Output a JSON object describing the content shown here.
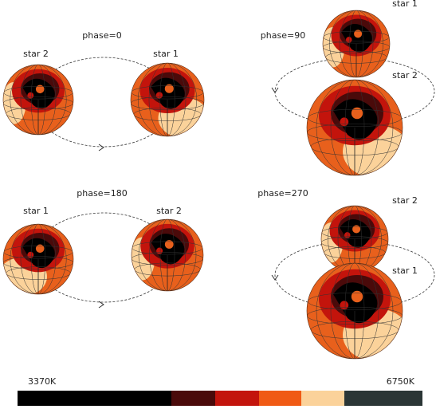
{
  "panels": [
    {
      "phase": "phase=0",
      "stars": [
        {
          "label": "star 2"
        },
        {
          "label": "star 1"
        }
      ]
    },
    {
      "phase": "phase=90",
      "stars": [
        {
          "label": "star 1"
        },
        {
          "label": "star 2"
        }
      ]
    },
    {
      "phase": "phase=180",
      "stars": [
        {
          "label": "star 1"
        },
        {
          "label": "star 2"
        }
      ]
    },
    {
      "phase": "phase=270",
      "stars": [
        {
          "label": "star 2"
        },
        {
          "label": "star 1"
        }
      ]
    }
  ],
  "colorbar": {
    "min_label": "3370K",
    "max_label": "6750K"
  }
}
